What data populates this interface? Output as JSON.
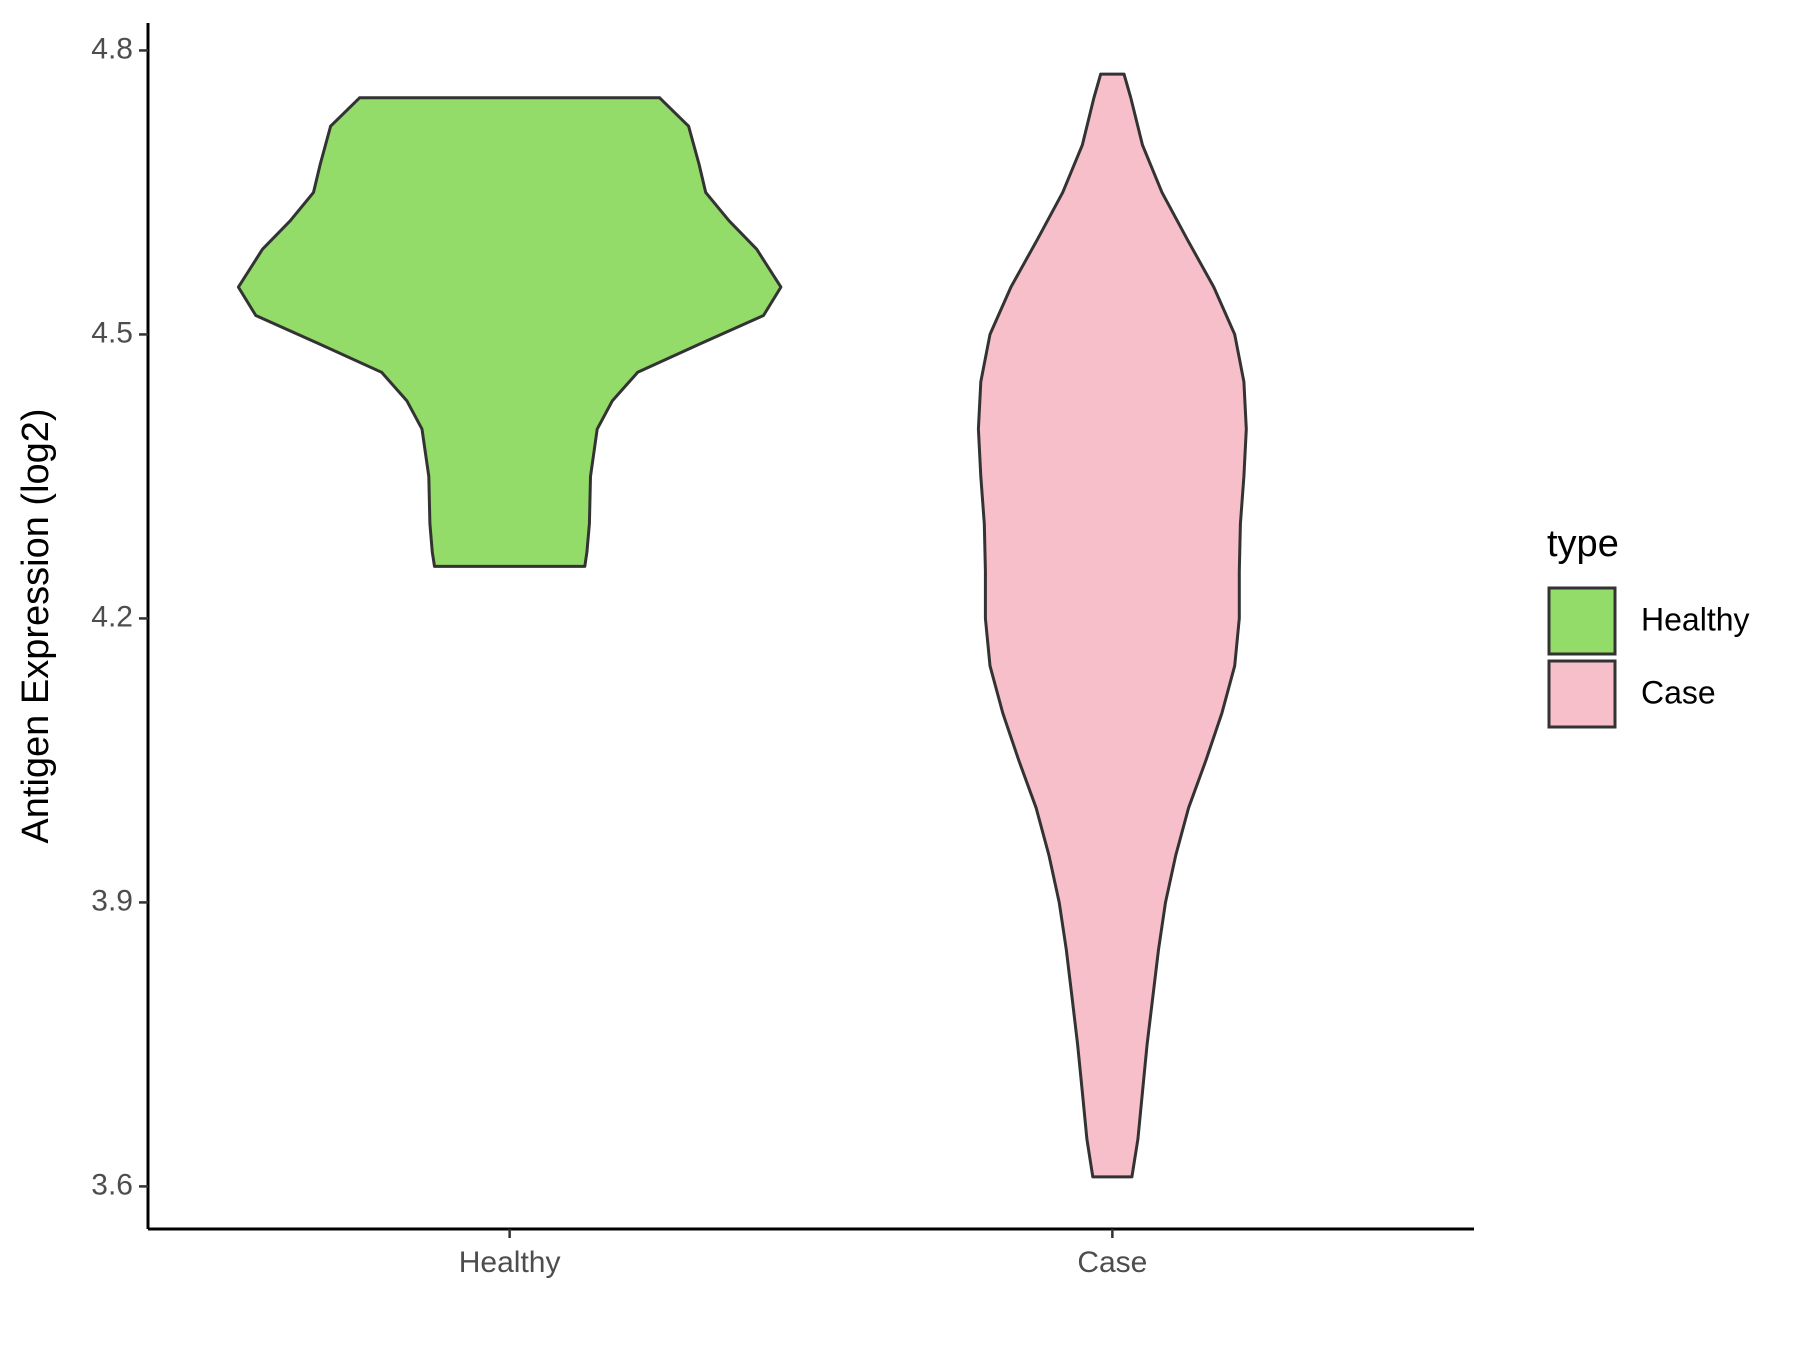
{
  "chart_data": {
    "type": "violin",
    "y_label": "Antigen Expression (log2)",
    "categories": [
      "Healthy",
      "Case"
    ],
    "legend_title": "type",
    "legend": "right",
    "series": [
      {
        "name": "Healthy",
        "color": "#93dc6a",
        "y": [
          4.75,
          4.72,
          4.68,
          4.65,
          4.62,
          4.59,
          4.55,
          4.52,
          4.49,
          4.46,
          4.43,
          4.4,
          4.35,
          4.3,
          4.27,
          4.255
        ],
        "density": [
          0.553,
          0.66,
          0.698,
          0.723,
          0.809,
          0.911,
          1,
          0.936,
          0.702,
          0.472,
          0.379,
          0.323,
          0.298,
          0.294,
          0.285,
          0.277
        ]
      },
      {
        "name": "Case",
        "color": "#f7bfca",
        "y": [
          4.775,
          4.75,
          4.7,
          4.65,
          4.6,
          4.55,
          4.5,
          4.45,
          4.4,
          4.35,
          4.3,
          4.25,
          4.2,
          4.15,
          4.1,
          4.05,
          4.0,
          3.95,
          3.9,
          3.85,
          3.8,
          3.75,
          3.7,
          3.65,
          3.61
        ],
        "density": [
          0.043,
          0.068,
          0.111,
          0.183,
          0.277,
          0.374,
          0.451,
          0.485,
          0.494,
          0.485,
          0.472,
          0.468,
          0.468,
          0.451,
          0.404,
          0.345,
          0.281,
          0.234,
          0.196,
          0.17,
          0.149,
          0.128,
          0.111,
          0.094,
          0.072
        ]
      }
    ],
    "ylim": [
      3.555,
      4.829
    ],
    "yticks": [
      3.6,
      3.9,
      4.2,
      4.5,
      4.8
    ]
  }
}
